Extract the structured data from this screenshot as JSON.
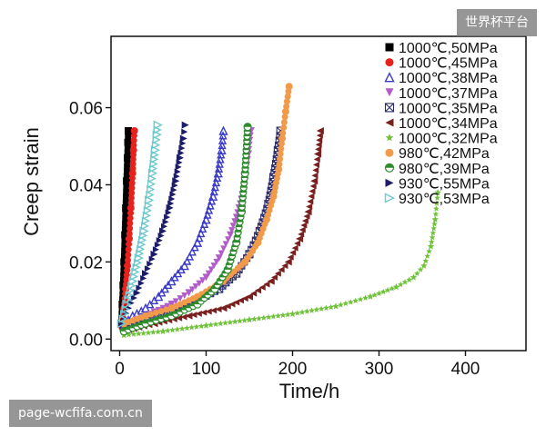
{
  "watermarks": {
    "top_right": "世界杯平台",
    "bottom_left": "page-wcfifa.com.cn"
  },
  "chart_data": {
    "type": "scatter",
    "xlabel": "Time/h",
    "ylabel": "Creep strain",
    "xlim": [
      -10,
      470
    ],
    "ylim": [
      -0.003,
      0.0785
    ],
    "xticks": [
      0,
      100,
      200,
      300,
      400
    ],
    "yticks": [
      0.0,
      0.02,
      0.04,
      0.06
    ],
    "ytick_labels": [
      "0.00",
      "0.02",
      "0.04",
      "0.06"
    ],
    "grid": false,
    "legend": "top-right",
    "series": [
      {
        "name": "1000℃,50MPa",
        "color": "#000000",
        "marker": "square",
        "x": [
          2,
          3,
          4,
          5,
          6,
          7,
          8,
          9,
          9.5,
          10
        ],
        "y": [
          0.004,
          0.009,
          0.014,
          0.02,
          0.027,
          0.034,
          0.041,
          0.047,
          0.051,
          0.054
        ]
      },
      {
        "name": "1000℃,45MPa",
        "color": "#e8211d",
        "marker": "circle",
        "x": [
          3,
          5,
          7,
          9,
          11,
          13,
          15,
          16,
          17
        ],
        "y": [
          0.003,
          0.008,
          0.013,
          0.019,
          0.026,
          0.034,
          0.043,
          0.049,
          0.054
        ]
      },
      {
        "name": "1000℃,38MPa",
        "color": "#3a3ac8",
        "marker": "triangle-up",
        "x": [
          5,
          15,
          30,
          45,
          60,
          75,
          90,
          100,
          108,
          114,
          118,
          120
        ],
        "y": [
          0.004,
          0.006,
          0.008,
          0.011,
          0.015,
          0.019,
          0.025,
          0.031,
          0.037,
          0.043,
          0.049,
          0.054
        ]
      },
      {
        "name": "1000℃,37MPa",
        "color": "#b15cc8",
        "marker": "triangle-down",
        "x": [
          5,
          20,
          40,
          60,
          80,
          100,
          115,
          128,
          138,
          145,
          149,
          152
        ],
        "y": [
          0.003,
          0.005,
          0.007,
          0.009,
          0.012,
          0.016,
          0.021,
          0.027,
          0.034,
          0.041,
          0.048,
          0.054
        ]
      },
      {
        "name": "1000℃,35MPa",
        "color": "#2a2a6e",
        "marker": "x-box",
        "x": [
          5,
          30,
          60,
          90,
          115,
          135,
          150,
          162,
          172,
          178,
          183,
          186
        ],
        "y": [
          0.003,
          0.005,
          0.007,
          0.01,
          0.013,
          0.017,
          0.022,
          0.028,
          0.035,
          0.042,
          0.049,
          0.054
        ]
      },
      {
        "name": "1000℃,34MPa",
        "color": "#7a1f1f",
        "marker": "tri-left",
        "x": [
          5,
          40,
          80,
          120,
          150,
          175,
          195,
          208,
          218,
          225,
          229,
          232
        ],
        "y": [
          0.002,
          0.004,
          0.006,
          0.008,
          0.011,
          0.015,
          0.02,
          0.026,
          0.033,
          0.041,
          0.048,
          0.054
        ]
      },
      {
        "name": "1000℃,32MPa",
        "color": "#6fc23a",
        "marker": "star",
        "x": [
          5,
          50,
          100,
          150,
          200,
          250,
          290,
          320,
          340,
          352,
          360,
          365,
          368
        ],
        "y": [
          0.001,
          0.002,
          0.0035,
          0.005,
          0.0065,
          0.0085,
          0.011,
          0.0135,
          0.016,
          0.019,
          0.024,
          0.031,
          0.038
        ]
      },
      {
        "name": "980℃,42MPa",
        "color": "#f09a4a",
        "marker": "circle",
        "x": [
          5,
          30,
          60,
          90,
          120,
          145,
          160,
          170,
          178,
          184,
          188,
          192,
          196
        ],
        "y": [
          0.004,
          0.006,
          0.008,
          0.011,
          0.015,
          0.02,
          0.025,
          0.031,
          0.037,
          0.044,
          0.052,
          0.059,
          0.0655
        ]
      },
      {
        "name": "980℃,39MPa",
        "color": "#2e8b2e",
        "marker": "circle-half",
        "x": [
          5,
          30,
          60,
          90,
          110,
          125,
          135,
          141,
          145,
          148
        ],
        "y": [
          0.002,
          0.004,
          0.006,
          0.009,
          0.013,
          0.018,
          0.025,
          0.033,
          0.043,
          0.055
        ]
      },
      {
        "name": "930℃,55MPa",
        "color": "#1c1c6b",
        "marker": "tri-right",
        "x": [
          3,
          10,
          20,
          30,
          40,
          50,
          58,
          65,
          70,
          74,
          76
        ],
        "y": [
          0.004,
          0.008,
          0.012,
          0.017,
          0.022,
          0.028,
          0.034,
          0.041,
          0.047,
          0.052,
          0.0555
        ]
      },
      {
        "name": "930℃,53MPa",
        "color": "#6fc9cf",
        "marker": "tri-right-open",
        "x": [
          2,
          8,
          15,
          22,
          28,
          34,
          38,
          41,
          43,
          44
        ],
        "y": [
          0.004,
          0.009,
          0.015,
          0.021,
          0.028,
          0.036,
          0.043,
          0.049,
          0.053,
          0.0555
        ]
      }
    ]
  }
}
